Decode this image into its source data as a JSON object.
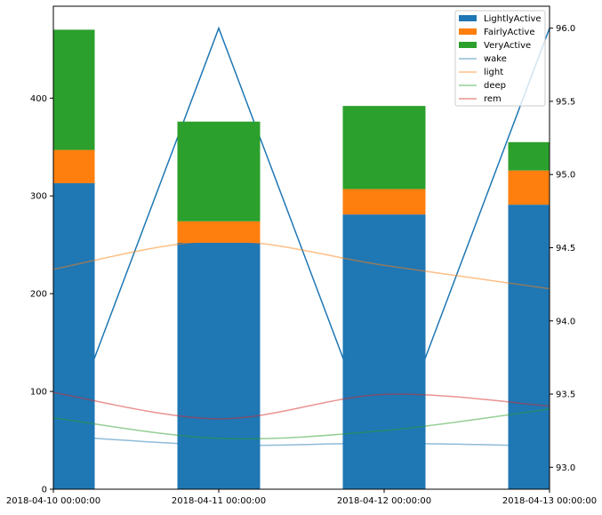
{
  "chart_data": {
    "type": "bar",
    "categories": [
      "2018-04-10 00:00:00",
      "2018-04-11 00:00:00",
      "2018-04-12 00:00:00",
      "2018-04-13 00:00:00"
    ],
    "stacked_series": [
      {
        "name": "LightlyActive",
        "color": "#1f77b4",
        "values": [
          313,
          252,
          281,
          291
        ]
      },
      {
        "name": "FairlyActive",
        "color": "#ff7f0e",
        "values": [
          34,
          22,
          26,
          35
        ]
      },
      {
        "name": "VeryActive",
        "color": "#2ca02c",
        "values": [
          123,
          102,
          85,
          29
        ]
      }
    ],
    "line_series": [
      {
        "name": "wake",
        "color": "#1f77b4",
        "values": [
          55,
          45,
          47,
          44
        ]
      },
      {
        "name": "light",
        "color": "#ff7f0e",
        "values": [
          225,
          254,
          229,
          205
        ]
      },
      {
        "name": "deep",
        "color": "#2ca02c",
        "values": [
          73,
          52,
          60,
          82
        ]
      },
      {
        "name": "rem",
        "color": "#d62728",
        "values": [
          99,
          72,
          97,
          85
        ]
      }
    ],
    "secondary_line": {
      "color": "#1f77b4",
      "values": [
        93.0,
        96.0,
        93.0,
        96.0
      ]
    },
    "left_axis": {
      "ylim": [
        0,
        494
      ],
      "ticks": [
        "0",
        "100",
        "200",
        "300",
        "400"
      ]
    },
    "right_axis": {
      "ylim": [
        92.85,
        96.15
      ],
      "ticks": [
        "93.0",
        "93.5",
        "94.0",
        "94.5",
        "95.0",
        "95.5",
        "96.0"
      ]
    },
    "legend": {
      "placement": "top-right",
      "entries": [
        "LightlyActive",
        "FairlyActive",
        "VeryActive",
        "wake",
        "light",
        "deep",
        "rem"
      ]
    }
  }
}
